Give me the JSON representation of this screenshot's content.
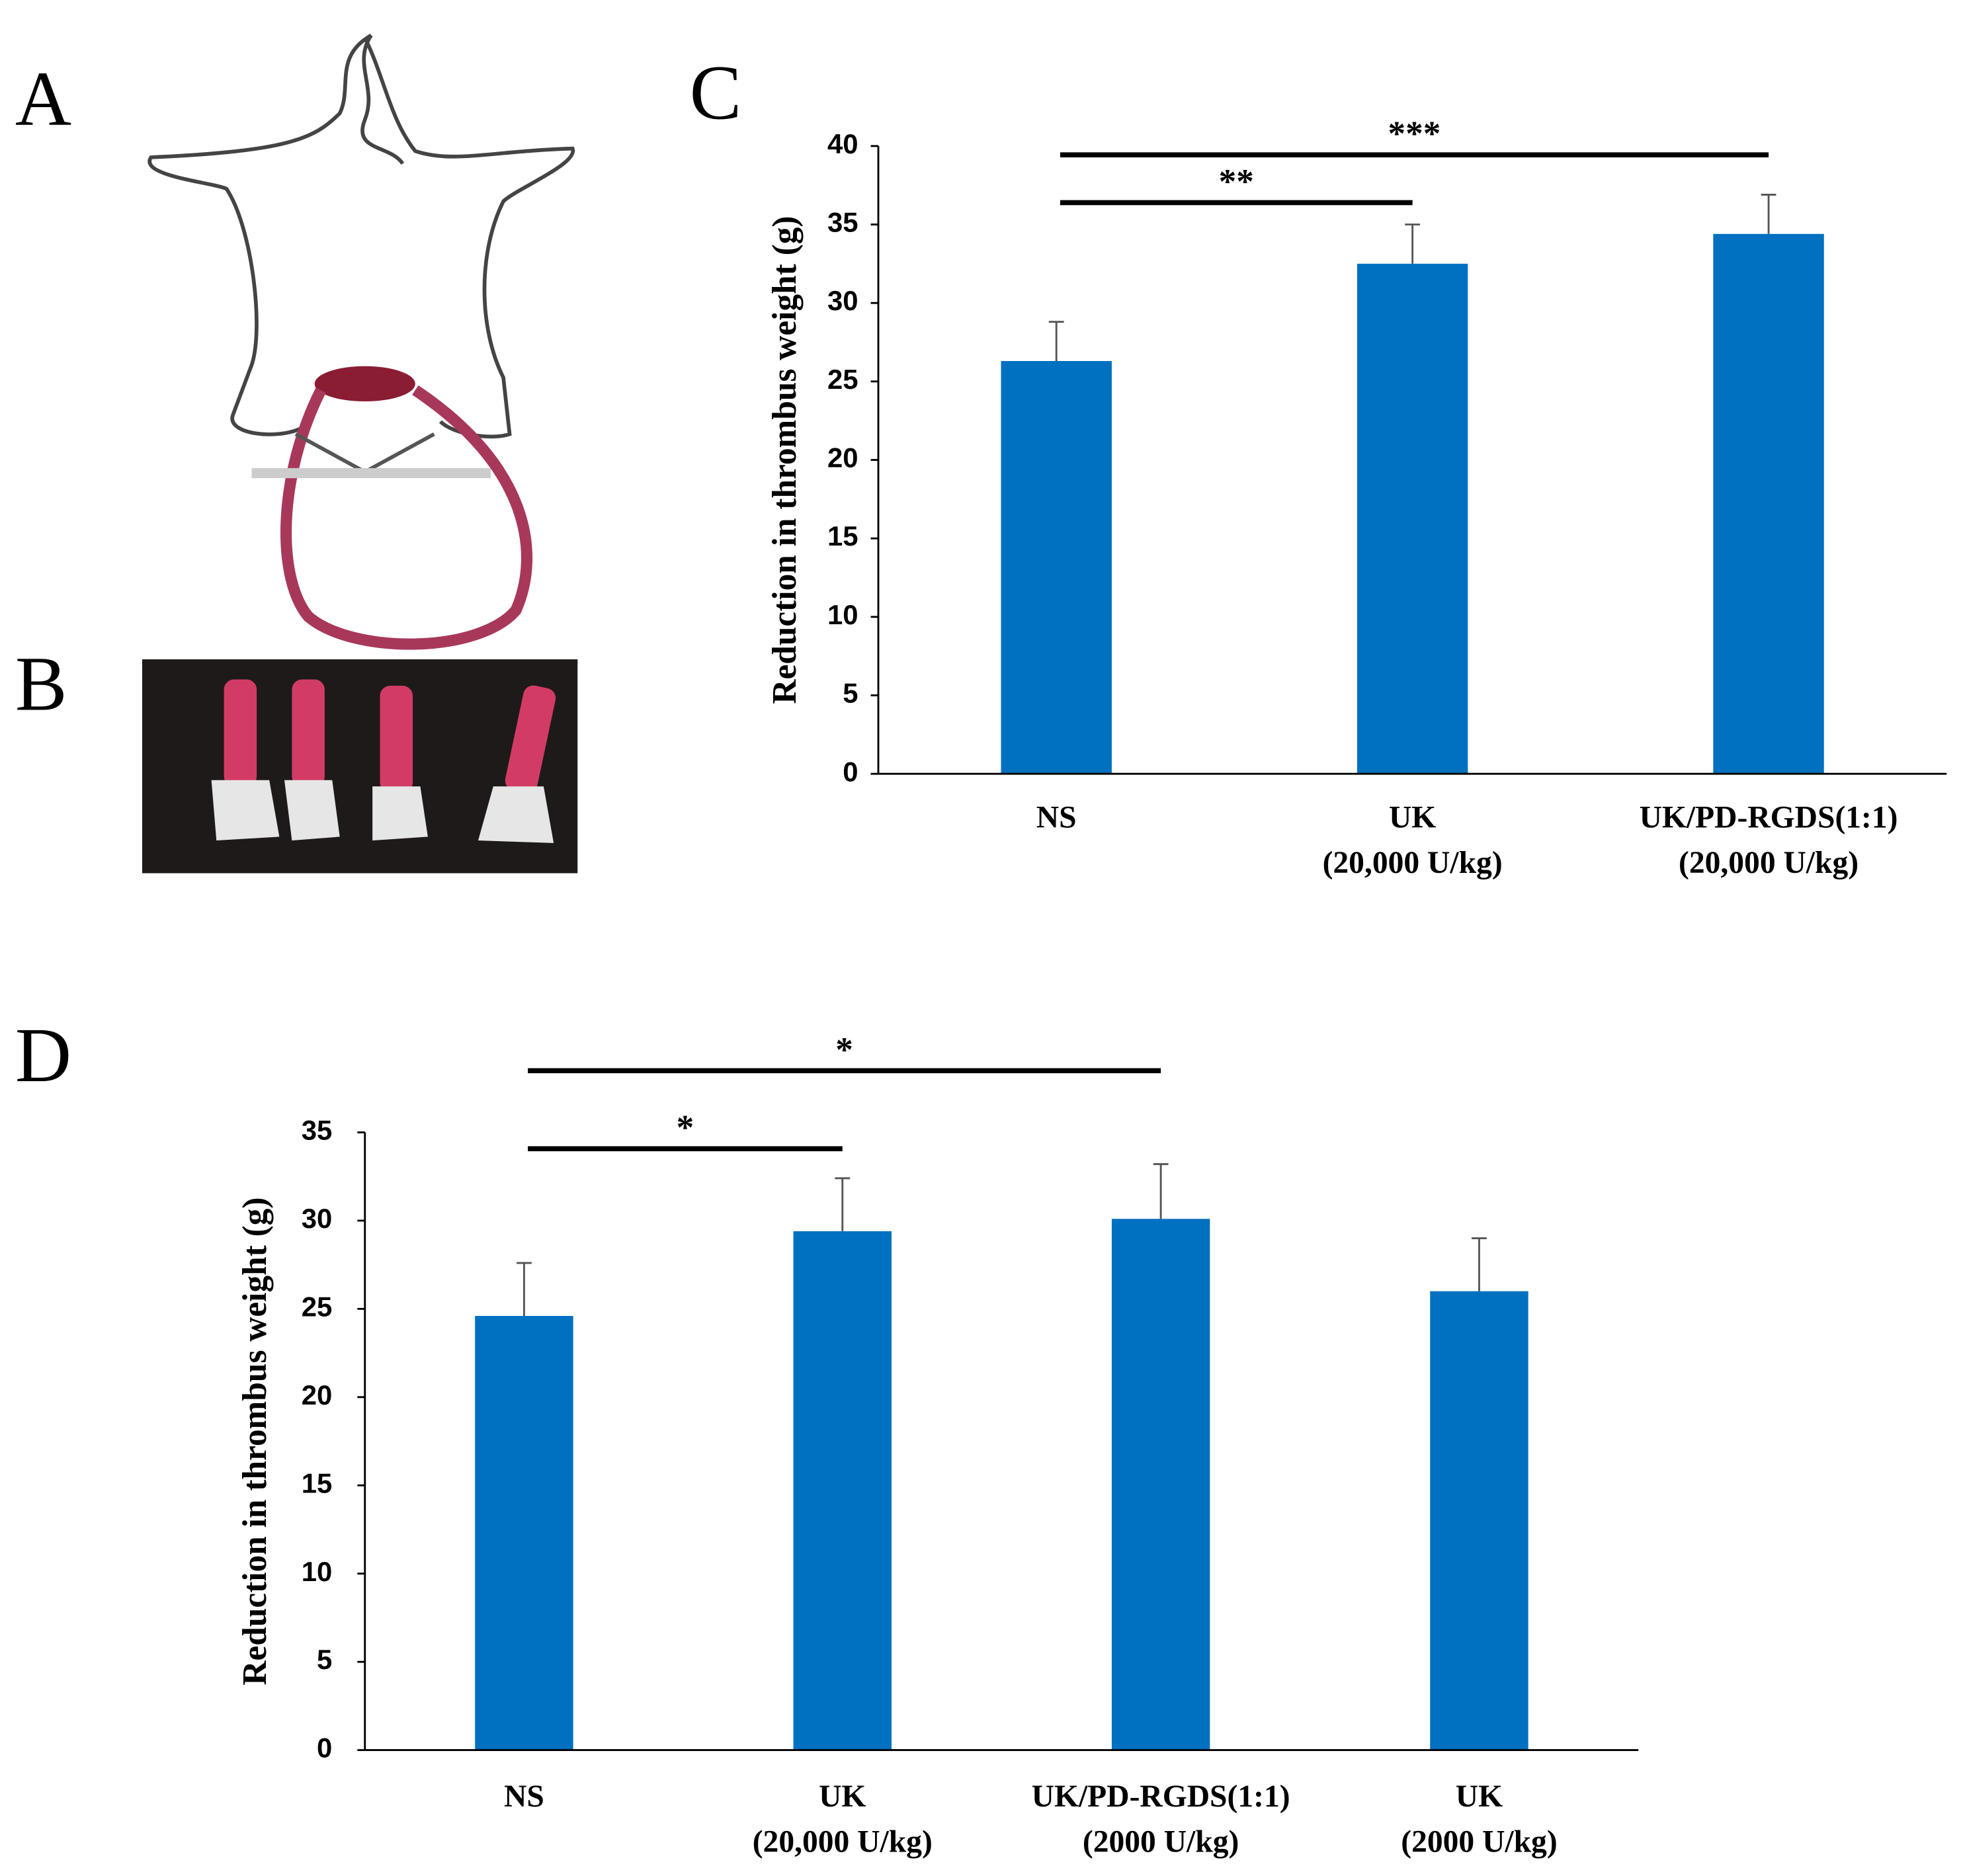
{
  "panel_labels": [
    "A",
    "B",
    "C",
    "D"
  ],
  "chart_data": [
    {
      "type": "bar",
      "y_label": "Reduction in thrombus weight (g)",
      "categories": [
        "NS",
        "UK\n(20,000 U/kg)",
        "UK/PD-RGDS(1:1)\n(20,000 U/kg)"
      ],
      "values": [
        26.3,
        32.5,
        34.4
      ],
      "errors": [
        2.5,
        2.5,
        2.5
      ],
      "color": "#0070c0",
      "ylim": [
        0,
        40
      ],
      "yticks": [
        0,
        5,
        10,
        15,
        20,
        25,
        30,
        35,
        40
      ],
      "annotations": [
        {
          "text": "**",
          "from": 0,
          "to": 1
        },
        {
          "text": "***",
          "from": 0,
          "to": 2
        }
      ]
    },
    {
      "type": "bar",
      "y_label": "Reduction in thrombus weight (g)",
      "categories": [
        "NS",
        "UK\n(20,000 U/kg)",
        "UK/PD-RGDS(1:1)\n(2000 U/kg)",
        "UK\n(2000 U/kg)"
      ],
      "values": [
        24.6,
        29.4,
        30.1,
        26.0
      ],
      "errors": [
        3.0,
        3.0,
        3.1,
        3.0
      ],
      "color": "#0070c0",
      "ylim": [
        0,
        35
      ],
      "yticks": [
        0,
        5,
        10,
        15,
        20,
        25,
        30,
        35
      ],
      "annotations": [
        {
          "text": "*",
          "from": 0,
          "to": 1
        },
        {
          "text": "*",
          "from": 0,
          "to": 2
        }
      ]
    }
  ]
}
